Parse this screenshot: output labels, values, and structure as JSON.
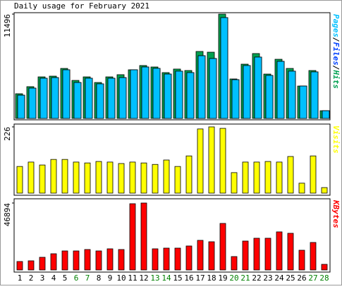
{
  "title": "Daily usage for February 2021",
  "categories": [
    "1",
    "2",
    "3",
    "4",
    "5",
    "6",
    "7",
    "8",
    "9",
    "10",
    "11",
    "12",
    "13",
    "14",
    "15",
    "16",
    "17",
    "18",
    "19",
    "20",
    "21",
    "22",
    "23",
    "24",
    "25",
    "26",
    "27",
    "28"
  ],
  "weekend_color": "#008000",
  "weekend_days": [
    "6",
    "7",
    "13",
    "14",
    "20",
    "21",
    "27",
    "28"
  ],
  "chart_data": [
    {
      "type": "bar",
      "legend_separator": "/",
      "ylim": [
        0,
        11496
      ],
      "yticks": [
        11496
      ],
      "series": [
        {
          "name": "Pages",
          "color": "#00c0ff",
          "values": [
            2560,
            3340,
            4430,
            4500,
            5360,
            3960,
            4430,
            3810,
            4430,
            4500,
            5360,
            5670,
            5520,
            4890,
            5210,
            5050,
            6910,
            6600,
            11110,
            4270,
            5830,
            6760,
            4740,
            6290,
            5210,
            3570,
            5130,
            850
          ]
        },
        {
          "name": "Files",
          "color": "#0040ff",
          "values": [
            2560,
            3340,
            4430,
            4500,
            5360,
            3960,
            4430,
            3810,
            4430,
            4500,
            5360,
            5670,
            5520,
            4890,
            5210,
            5050,
            6910,
            6600,
            11110,
            4270,
            5830,
            6760,
            4740,
            6290,
            5210,
            3570,
            5130,
            850
          ]
        },
        {
          "name": "Hits",
          "color": "#00a050",
          "values": [
            2720,
            3500,
            4580,
            4660,
            5510,
            4190,
            4580,
            3960,
            4580,
            4820,
            5360,
            5830,
            5670,
            5050,
            5440,
            5280,
            7380,
            7300,
            11496,
            4350,
            5980,
            7150,
            4890,
            6520,
            5510,
            3570,
            5280,
            850
          ]
        }
      ]
    },
    {
      "type": "bar",
      "ylim": [
        0,
        226
      ],
      "yticks": [
        226
      ],
      "series": [
        {
          "name": "Visits",
          "color": "#ffff00",
          "values": [
            91,
            106,
            96,
            115,
            115,
            106,
            103,
            108,
            106,
            101,
            106,
            103,
            98,
            113,
            91,
            127,
            219,
            226,
            221,
            70,
            106,
            106,
            108,
            106,
            125,
            34,
            127,
            19
          ]
        }
      ]
    },
    {
      "type": "bar",
      "ylim": [
        0,
        46894
      ],
      "yticks": [
        46894
      ],
      "series": [
        {
          "name": "KBytes",
          "color": "#ff0000",
          "values": [
            5930,
            6420,
            8890,
            11360,
            13340,
            13340,
            14330,
            13340,
            14820,
            14330,
            46400,
            46894,
            14820,
            15310,
            15310,
            16800,
            20750,
            19760,
            32600,
            9390,
            20250,
            22230,
            22230,
            26680,
            25690,
            13830,
            19270,
            3950
          ]
        }
      ]
    }
  ]
}
